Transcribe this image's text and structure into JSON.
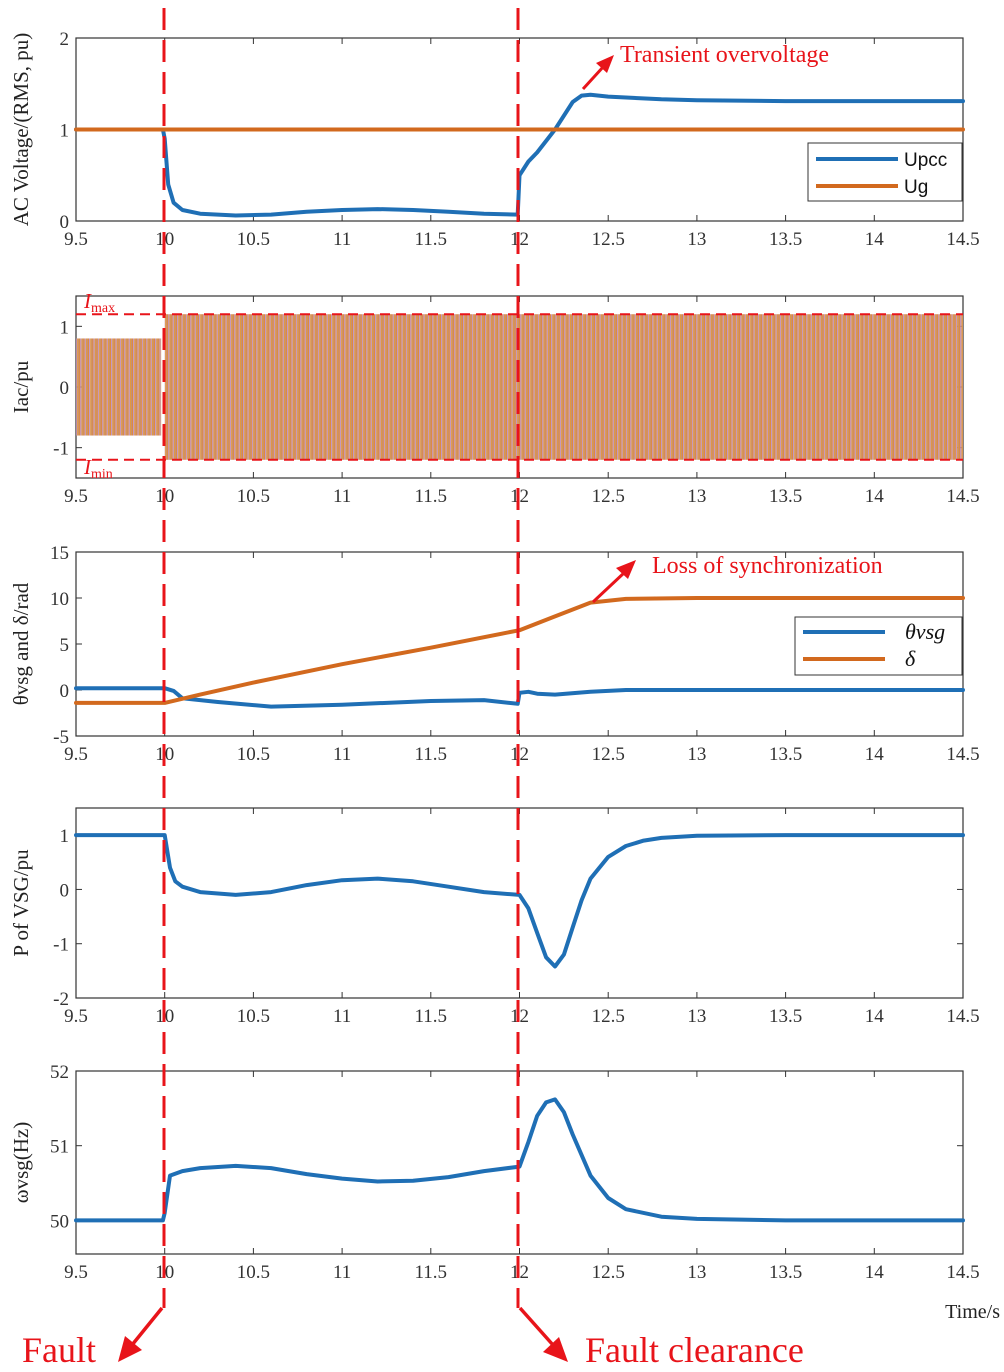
{
  "figure": {
    "x_unit_label": "Time/s",
    "event_labels": {
      "fault": "Fault",
      "clearance": "Fault clearance"
    },
    "colors": {
      "blue": "#1f6fb5",
      "orange": "#d2691e",
      "red": "#e8141a",
      "axis": "#333333"
    }
  },
  "chart_data": [
    {
      "type": "line",
      "ylabel": "AC Voltage/(RMS, pu)",
      "xlim": [
        9.5,
        14.5
      ],
      "ylim": [
        0,
        2
      ],
      "xticks": [
        "9.5",
        "10",
        "10.5",
        "11",
        "11.5",
        "12",
        "12.5",
        "13",
        "13.5",
        "14",
        "14.5"
      ],
      "yticks": [
        "0",
        "1",
        "2"
      ],
      "legend": "upper-right",
      "annotation": "Transient overvoltage",
      "series": [
        {
          "name": "Upcc",
          "color": "blue",
          "x": [
            9.5,
            9.99,
            10.0,
            10.02,
            10.05,
            10.1,
            10.2,
            10.4,
            10.6,
            10.8,
            11.0,
            11.2,
            11.4,
            11.6,
            11.8,
            11.99,
            12.0,
            12.05,
            12.1,
            12.2,
            12.3,
            12.35,
            12.4,
            12.5,
            12.6,
            12.8,
            13.0,
            13.5,
            14.0,
            14.5
          ],
          "values": [
            1.0,
            1.0,
            0.9,
            0.4,
            0.2,
            0.12,
            0.08,
            0.06,
            0.07,
            0.1,
            0.12,
            0.13,
            0.12,
            0.1,
            0.08,
            0.07,
            0.5,
            0.65,
            0.75,
            1.0,
            1.3,
            1.37,
            1.38,
            1.36,
            1.35,
            1.33,
            1.32,
            1.31,
            1.31,
            1.31
          ]
        },
        {
          "name": "Ug",
          "color": "orange",
          "x": [
            9.5,
            14.5
          ],
          "values": [
            1.0,
            1.0
          ]
        }
      ]
    },
    {
      "type": "line",
      "ylabel": "Iac/pu",
      "xlim": [
        9.5,
        14.5
      ],
      "ylim": [
        -1.5,
        1.5
      ],
      "xticks": [
        "9.5",
        "10",
        "10.5",
        "11",
        "11.5",
        "12",
        "12.5",
        "13",
        "13.5",
        "14",
        "14.5"
      ],
      "yticks": [
        "-1",
        "0",
        "1"
      ],
      "limit_labels": {
        "max": "I",
        "max_sub": "max",
        "min": "I",
        "min_sub": "min"
      },
      "limits": {
        "max": 1.2,
        "min": -1.2
      },
      "envelope": [
        {
          "x0": 9.5,
          "x1": 9.98,
          "amplitude": 0.8
        },
        {
          "x0": 10.0,
          "x1": 14.5,
          "amplitude": 1.2
        }
      ]
    },
    {
      "type": "line",
      "ylabel": "θvsg and δ/rad",
      "xlim": [
        9.5,
        14.5
      ],
      "ylim": [
        -5,
        15
      ],
      "xticks": [
        "9.5",
        "10",
        "10.5",
        "11",
        "11.5",
        "12",
        "12.5",
        "13",
        "13.5",
        "14",
        "14.5"
      ],
      "yticks": [
        "-5",
        "0",
        "5",
        "10",
        "15"
      ],
      "legend": "right",
      "annotation": "Loss of synchronization",
      "series": [
        {
          "name": "θvsg",
          "color": "blue",
          "x": [
            9.5,
            10.0,
            10.05,
            10.1,
            10.3,
            10.6,
            11.0,
            11.5,
            11.8,
            11.99,
            12.0,
            12.05,
            12.1,
            12.2,
            12.4,
            12.6,
            13.0,
            14.5
          ],
          "values": [
            0.2,
            0.2,
            -0.1,
            -0.9,
            -1.3,
            -1.8,
            -1.6,
            -1.2,
            -1.1,
            -1.5,
            -0.3,
            -0.2,
            -0.4,
            -0.5,
            -0.2,
            0.0,
            0.0,
            0.0
          ]
        },
        {
          "name": "δ",
          "color": "orange",
          "x": [
            9.5,
            10.0,
            10.2,
            10.5,
            11.0,
            11.5,
            12.0,
            12.2,
            12.4,
            12.6,
            13.0,
            13.5,
            14.5
          ],
          "values": [
            -1.4,
            -1.4,
            -0.5,
            0.8,
            2.8,
            4.6,
            6.5,
            8.0,
            9.5,
            9.9,
            10.0,
            10.0,
            10.0
          ]
        }
      ]
    },
    {
      "type": "line",
      "ylabel": "P of VSG/pu",
      "xlim": [
        9.5,
        14.5
      ],
      "ylim": [
        -2,
        1.5
      ],
      "xticks": [
        "9.5",
        "10",
        "10.5",
        "11",
        "11.5",
        "12",
        "12.5",
        "13",
        "13.5",
        "14",
        "14.5"
      ],
      "yticks": [
        "-2",
        "-1",
        "0",
        "1"
      ],
      "series": [
        {
          "name": "",
          "color": "blue",
          "x": [
            9.5,
            10.0,
            10.03,
            10.06,
            10.1,
            10.2,
            10.4,
            10.6,
            10.8,
            11.0,
            11.2,
            11.4,
            11.6,
            11.8,
            12.0,
            12.05,
            12.1,
            12.15,
            12.2,
            12.25,
            12.3,
            12.35,
            12.4,
            12.5,
            12.6,
            12.7,
            12.8,
            13.0,
            13.5,
            14.5
          ],
          "values": [
            1.0,
            1.0,
            0.4,
            0.15,
            0.05,
            -0.05,
            -0.1,
            -0.05,
            0.08,
            0.17,
            0.2,
            0.15,
            0.05,
            -0.05,
            -0.1,
            -0.35,
            -0.8,
            -1.25,
            -1.42,
            -1.2,
            -0.7,
            -0.2,
            0.2,
            0.6,
            0.8,
            0.9,
            0.95,
            0.99,
            1.0,
            1.0
          ]
        }
      ]
    },
    {
      "type": "line",
      "ylabel": "ωvsg(Hz)",
      "xlim": [
        9.5,
        14.5
      ],
      "ylim": [
        49.55,
        52.0
      ],
      "xticks": [
        "9.5",
        "10",
        "10.5",
        "11",
        "11.5",
        "12",
        "12.5",
        "13",
        "13.5",
        "14",
        "14.5"
      ],
      "yticks": [
        "50",
        "51",
        "52"
      ],
      "series": [
        {
          "name": "",
          "color": "blue",
          "x": [
            9.5,
            9.99,
            10.0,
            10.03,
            10.1,
            10.2,
            10.4,
            10.6,
            10.8,
            11.0,
            11.2,
            11.4,
            11.6,
            11.8,
            12.0,
            12.05,
            12.1,
            12.15,
            12.2,
            12.25,
            12.3,
            12.4,
            12.5,
            12.6,
            12.8,
            13.0,
            13.5,
            14.5
          ],
          "values": [
            50.0,
            50.0,
            50.1,
            50.6,
            50.66,
            50.7,
            50.73,
            50.7,
            50.62,
            50.56,
            50.52,
            50.53,
            50.58,
            50.66,
            50.72,
            51.05,
            51.4,
            51.58,
            51.62,
            51.45,
            51.15,
            50.6,
            50.3,
            50.15,
            50.05,
            50.02,
            50.0,
            50.0
          ]
        }
      ]
    }
  ]
}
